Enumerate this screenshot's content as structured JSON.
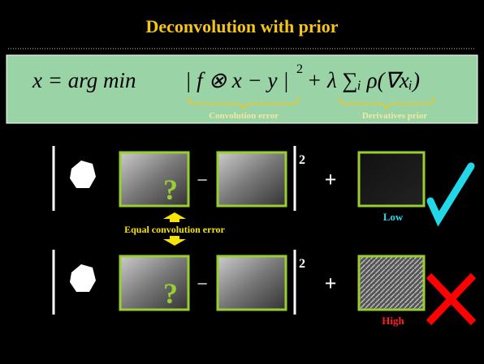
{
  "title": "Deconvolution with prior",
  "equation": {
    "lhs": "x = arg min",
    "term1": "| f ⊗ x − y |",
    "exponent": "2",
    "term2": "+ λ ∑ᵢ ρ(∇xᵢ)",
    "label1": "Convolution error",
    "label2": "Derivatives prior"
  },
  "rows": [
    {
      "minus": "−",
      "exponent": "2",
      "plus": "+",
      "question": "?",
      "label": "Low"
    },
    {
      "minus": "−",
      "exponent": "2",
      "plus": "+",
      "question": "?",
      "label": "High"
    }
  ],
  "middle_label": "Equal convolution error"
}
